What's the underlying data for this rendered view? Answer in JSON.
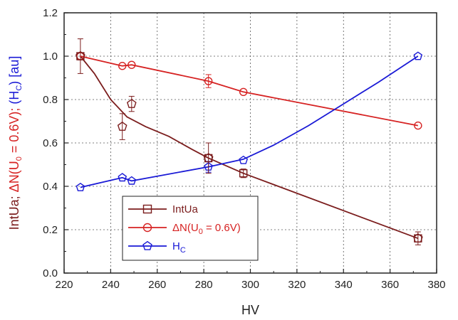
{
  "chart_data": {
    "type": "line",
    "xlabel": "HV",
    "ylabel_parts": {
      "a": "IntUa; ",
      "b": "ΔN(U",
      "b_sub": "0",
      "c": " = 0.6V); ",
      "d": "(H",
      "d_sub": "C",
      "e": ") [au]"
    },
    "xlim": [
      220,
      380
    ],
    "ylim": [
      0.0,
      1.2
    ],
    "x_ticks": [
      220,
      240,
      260,
      280,
      300,
      320,
      340,
      360,
      380
    ],
    "y_ticks": [
      "0.0",
      "0.2",
      "0.4",
      "0.6",
      "0.8",
      "1.0",
      "1.2"
    ],
    "grid": true,
    "legend_position": "lower-left",
    "series": [
      {
        "name": "IntUa",
        "name_sub": "",
        "name_suffix": "",
        "color": "#7b1d1d",
        "marker": "square",
        "points": [
          {
            "x": 227,
            "y": 1.0,
            "err": 0.0
          },
          {
            "x": 282,
            "y": 0.53,
            "err": 0.0
          },
          {
            "x": 297,
            "y": 0.46,
            "err": 0.02
          },
          {
            "x": 372,
            "y": 0.16,
            "err": 0.0
          }
        ],
        "curve": [
          [
            227,
            1.0
          ],
          [
            233,
            0.92
          ],
          [
            240,
            0.8
          ],
          [
            247,
            0.72
          ],
          [
            255,
            0.675
          ],
          [
            265,
            0.63
          ],
          [
            275,
            0.57
          ],
          [
            282,
            0.53
          ],
          [
            297,
            0.46
          ],
          [
            372,
            0.16
          ]
        ]
      },
      {
        "name": "ΔN(U",
        "name_sub": "0",
        "name_suffix": " = 0.6V)",
        "color": "#d62222",
        "marker": "circle",
        "points": [
          {
            "x": 227,
            "y": 1.0,
            "err": 0.0
          },
          {
            "x": 245,
            "y": 0.955,
            "err": 0.0
          },
          {
            "x": 249,
            "y": 0.96,
            "err": 0.0
          },
          {
            "x": 282,
            "y": 0.885,
            "err": 0.03
          },
          {
            "x": 297,
            "y": 0.835,
            "err": 0.0
          },
          {
            "x": 372,
            "y": 0.68,
            "err": 0.0
          }
        ],
        "curve": [
          [
            227,
            1.0
          ],
          [
            245,
            0.955
          ],
          [
            249,
            0.96
          ],
          [
            282,
            0.885
          ],
          [
            297,
            0.835
          ],
          [
            372,
            0.68
          ]
        ]
      },
      {
        "name": "H",
        "name_sub": "C",
        "name_suffix": "",
        "color": "#1a1ad6",
        "marker": "pentagon",
        "points": [
          {
            "x": 227,
            "y": 0.395,
            "err": 0.0
          },
          {
            "x": 245,
            "y": 0.44,
            "err": 0.0
          },
          {
            "x": 249,
            "y": 0.425,
            "err": 0.0
          },
          {
            "x": 282,
            "y": 0.49,
            "err": 0.025
          },
          {
            "x": 297,
            "y": 0.52,
            "err": 0.0
          },
          {
            "x": 372,
            "y": 1.0,
            "err": 0.0
          }
        ],
        "curve": [
          [
            227,
            0.395
          ],
          [
            245,
            0.44
          ],
          [
            249,
            0.425
          ],
          [
            282,
            0.49
          ],
          [
            297,
            0.525
          ],
          [
            310,
            0.59
          ],
          [
            325,
            0.68
          ],
          [
            340,
            0.78
          ],
          [
            355,
            0.88
          ],
          [
            372,
            1.0
          ]
        ]
      },
      {
        "name": "",
        "color": "#7b1d1d",
        "marker": "pentagon-open",
        "points": [
          {
            "x": 227,
            "y": 1.0,
            "err": 0.08
          },
          {
            "x": 245,
            "y": 0.675,
            "err": 0.06
          },
          {
            "x": 249,
            "y": 0.78,
            "err": 0.035
          },
          {
            "x": 282,
            "y": 0.53,
            "err": 0.07
          },
          {
            "x": 372,
            "y": 0.16,
            "err": 0.03
          }
        ],
        "curve": []
      }
    ]
  }
}
